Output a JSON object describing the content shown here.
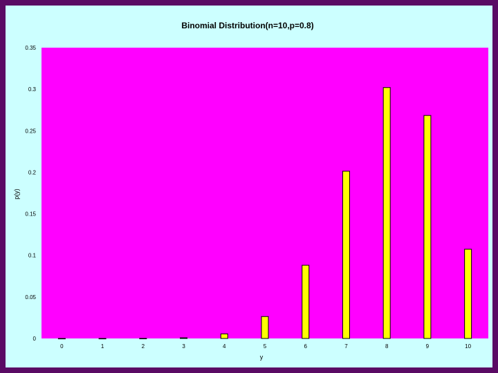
{
  "colors": {
    "frame_border": "#5a0a64",
    "chart_background": "#ccffff",
    "plot_background": "#ff00ff",
    "bar_fill": "#ffff00",
    "bar_stroke": "#000000"
  },
  "chart_data": {
    "type": "bar",
    "title": "Binomial Distribution(n=10,p=0.8)",
    "xlabel": "y",
    "ylabel": "p(y)",
    "categories": [
      "0",
      "1",
      "2",
      "3",
      "4",
      "5",
      "6",
      "7",
      "8",
      "9",
      "10"
    ],
    "values": [
      1e-07,
      4e-06,
      7e-05,
      0.00079,
      0.0055,
      0.0264,
      0.0881,
      0.2013,
      0.302,
      0.2684,
      0.1074
    ],
    "ylim": [
      0,
      0.35
    ],
    "yticks": [
      "0",
      "0.05",
      "0.1",
      "0.15",
      "0.2",
      "0.25",
      "0.3",
      "0.35"
    ],
    "grid": false,
    "legend": "none"
  }
}
